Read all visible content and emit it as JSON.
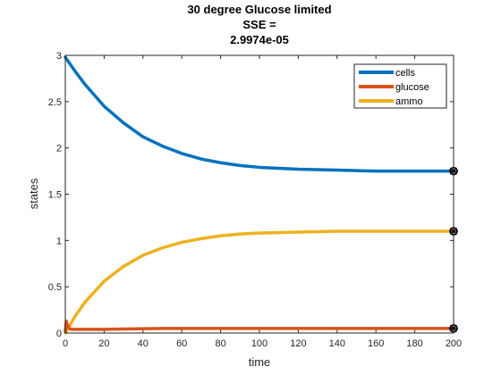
{
  "chart_data": {
    "type": "line",
    "title_lines": [
      "30 degree Glucose limited",
      "SSE =",
      "2.9974e-05"
    ],
    "xlabel": "time",
    "ylabel": "states",
    "xlim": [
      0,
      200
    ],
    "ylim": [
      0,
      3
    ],
    "xticks": [
      0,
      20,
      40,
      60,
      80,
      100,
      120,
      140,
      160,
      180,
      200
    ],
    "yticks": [
      0,
      0.5,
      1,
      1.5,
      2,
      2.5,
      3
    ],
    "ytick_labels": [
      "0",
      "0.5",
      "1",
      "1.5",
      "2",
      "2.5",
      "3"
    ],
    "grid": false,
    "legend_position": "top-right",
    "series": [
      {
        "name": "cells",
        "color": "#0072BD",
        "x": [
          0,
          5,
          10,
          20,
          30,
          40,
          50,
          60,
          70,
          80,
          90,
          100,
          120,
          140,
          160,
          180,
          200
        ],
        "values": [
          2.98,
          2.83,
          2.69,
          2.45,
          2.27,
          2.12,
          2.02,
          1.94,
          1.88,
          1.84,
          1.81,
          1.79,
          1.77,
          1.76,
          1.75,
          1.75,
          1.75
        ]
      },
      {
        "name": "glucose",
        "color": "#D95319",
        "x": [
          0,
          0.5,
          1,
          2,
          3,
          5,
          10,
          20,
          50,
          100,
          150,
          200
        ],
        "values": [
          0.02,
          0.13,
          0.09,
          0.05,
          0.04,
          0.04,
          0.04,
          0.04,
          0.05,
          0.05,
          0.05,
          0.05
        ]
      },
      {
        "name": "ammo",
        "color": "#EDB120",
        "x": [
          0,
          5,
          10,
          20,
          30,
          40,
          50,
          60,
          70,
          80,
          90,
          100,
          120,
          140,
          160,
          180,
          200
        ],
        "values": [
          0.0,
          0.18,
          0.33,
          0.56,
          0.72,
          0.84,
          0.92,
          0.98,
          1.02,
          1.05,
          1.07,
          1.08,
          1.09,
          1.1,
          1.1,
          1.1,
          1.1
        ]
      }
    ],
    "markers": {
      "symbol": "circle-star",
      "color": "#000000",
      "points": [
        {
          "x": 200,
          "y": 1.75
        },
        {
          "x": 200,
          "y": 1.1
        },
        {
          "x": 200,
          "y": 0.05
        }
      ]
    }
  }
}
